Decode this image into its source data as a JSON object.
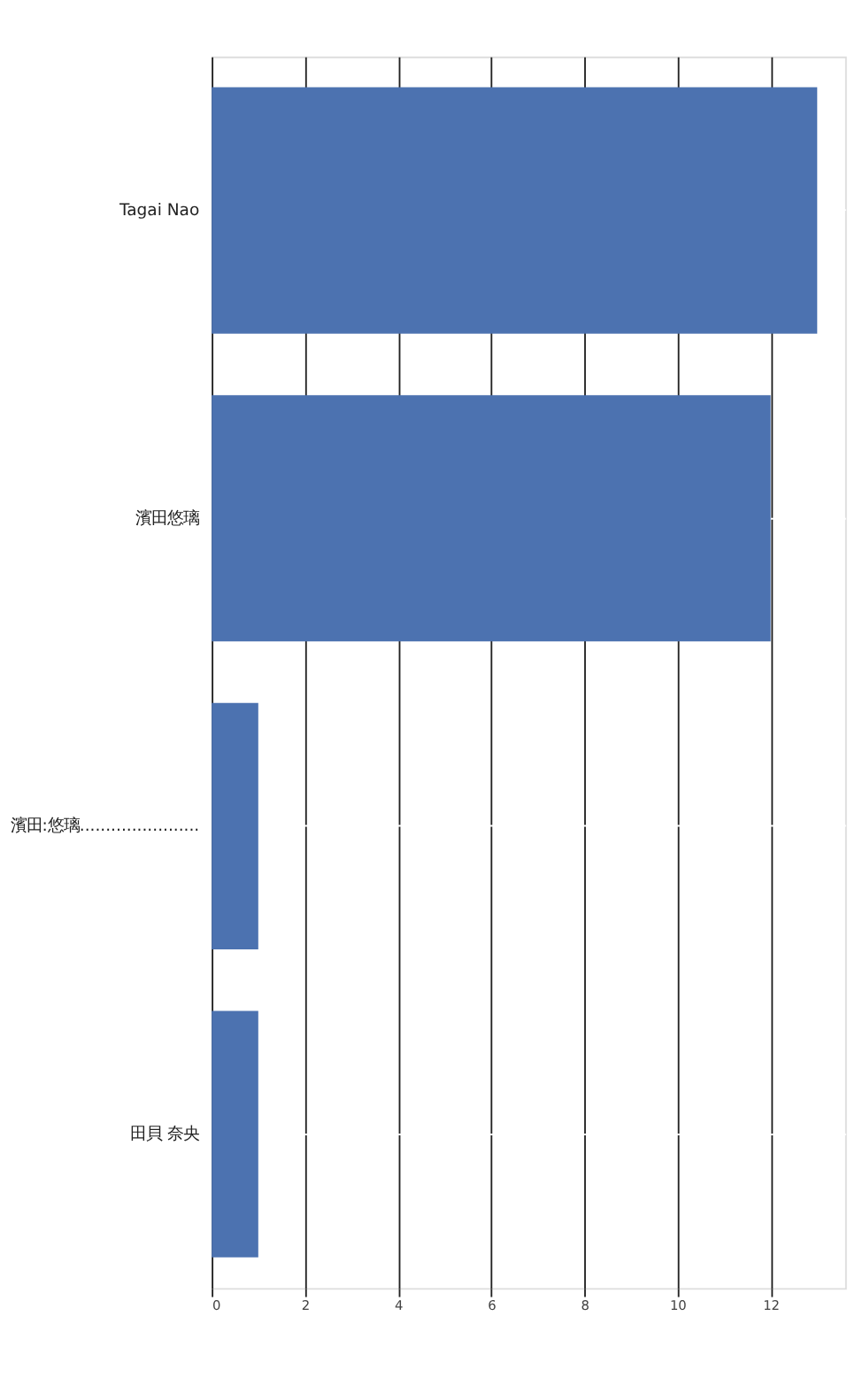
{
  "chart_data": {
    "type": "bar",
    "orientation": "horizontal",
    "categories": [
      "Tagai Nao",
      "濱田悠璃",
      "濱田:悠璃.......................",
      "田貝 奈央"
    ],
    "values": [
      13,
      12,
      1,
      1
    ],
    "color": "#4c72b0",
    "xlim": [
      0,
      13.6
    ],
    "xticks": [
      0,
      2,
      4,
      6,
      8,
      10,
      12
    ],
    "grid": true
  }
}
